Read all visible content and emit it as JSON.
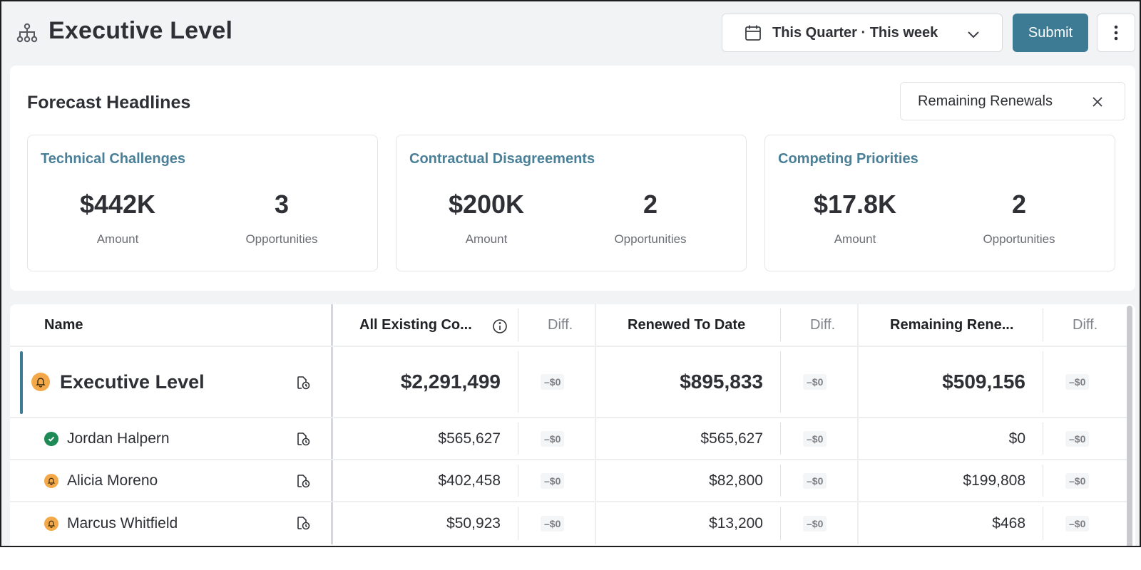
{
  "header": {
    "title": "Executive Level",
    "icon": "org-chart-icon",
    "date_range": "This Quarter · This week",
    "submit_label": "Submit",
    "more_icon": "more-vertical-icon"
  },
  "forecast": {
    "title": "Forecast Headlines",
    "filter_chip": "Remaining Renewals",
    "cards": [
      {
        "title": "Technical Challenges",
        "amount": "$442K",
        "amount_label": "Amount",
        "opportunities": "3",
        "opportunities_label": "Opportunities"
      },
      {
        "title": "Contractual Disagreements",
        "amount": "$200K",
        "amount_label": "Amount",
        "opportunities": "2",
        "opportunities_label": "Opportunities"
      },
      {
        "title": "Competing Priorities",
        "amount": "$17.8K",
        "amount_label": "Amount",
        "opportunities": "2",
        "opportunities_label": "Opportunities"
      }
    ]
  },
  "table": {
    "columns": {
      "name": "Name",
      "existing": "All Existing Co...",
      "diff": "Diff.",
      "renewed": "Renewed To Date",
      "remaining": "Remaining Rene..."
    },
    "rows": [
      {
        "name": "Executive Level",
        "status": "bell",
        "existing": "$2,291,499",
        "existing_diff": "–$0",
        "renewed": "$895,833",
        "renewed_diff": "–$0",
        "remaining": "$509,156",
        "remaining_diff": "–$0"
      },
      {
        "name": "Jordan Halpern",
        "status": "check",
        "existing": "$565,627",
        "existing_diff": "–$0",
        "renewed": "$565,627",
        "renewed_diff": "–$0",
        "remaining": "$0",
        "remaining_diff": "–$0"
      },
      {
        "name": "Alicia Moreno",
        "status": "bell",
        "existing": "$402,458",
        "existing_diff": "–$0",
        "renewed": "$82,800",
        "renewed_diff": "–$0",
        "remaining": "$199,808",
        "remaining_diff": "–$0"
      },
      {
        "name": "Marcus Whitfield",
        "status": "bell",
        "existing": "$50,923",
        "existing_diff": "–$0",
        "renewed": "$13,200",
        "renewed_diff": "–$0",
        "remaining": "$468",
        "remaining_diff": "–$0"
      }
    ]
  },
  "colors": {
    "accent": "#3d7a93",
    "card_title": "#4a7f98",
    "bell": "#f3a949",
    "check": "#1e8a55"
  }
}
